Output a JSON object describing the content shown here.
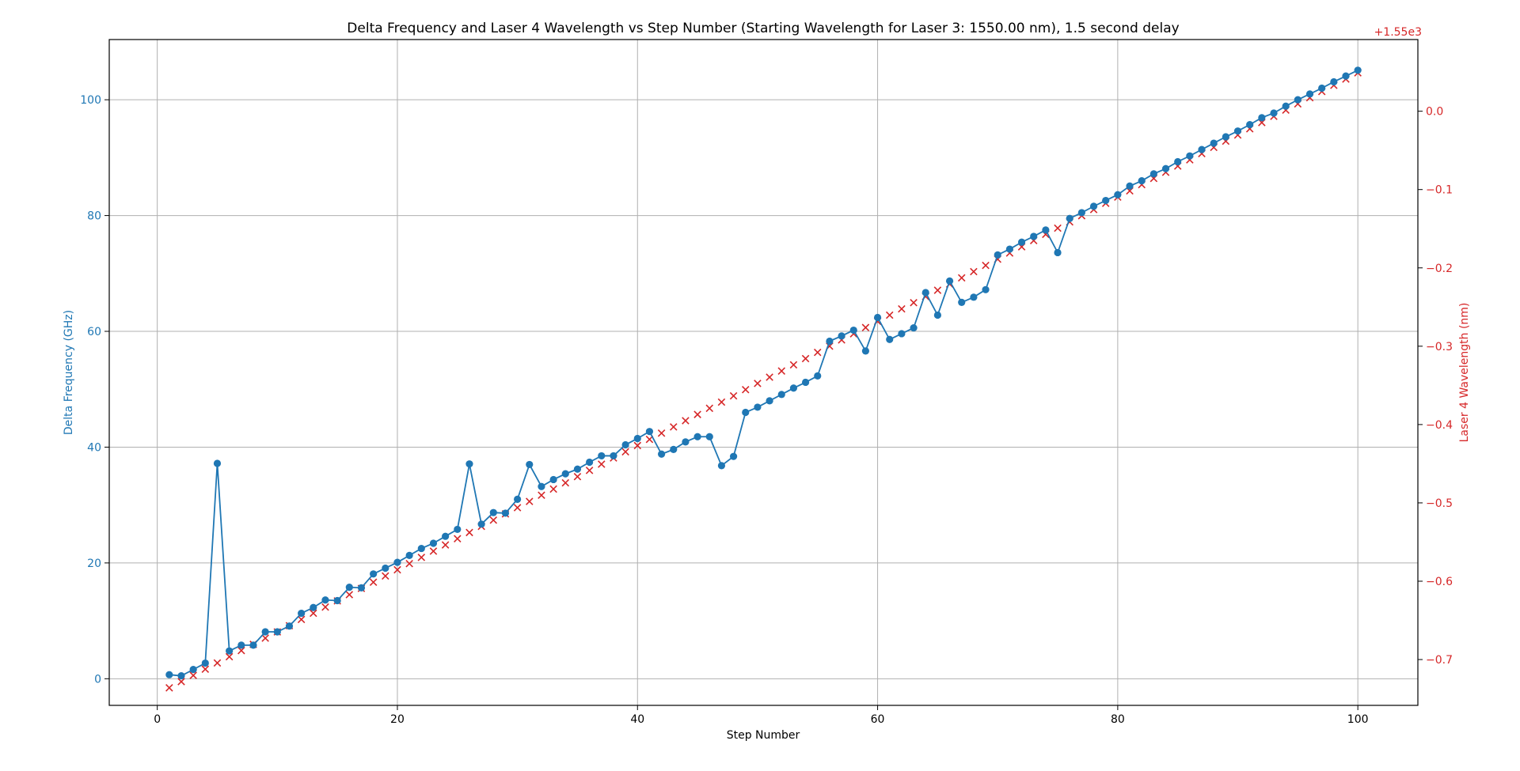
{
  "chart_data": {
    "type": "line",
    "title": "Delta Frequency and Laser 4 Wavelength vs Step Number (Starting Wavelength for Laser 3: 1550.00 nm), 1.5 second delay",
    "xlabel": "Step Number",
    "ylabel_left": "Delta Frequency (GHz)",
    "ylabel_right": "Laser 4 Wavelength (nm)",
    "right_offset_label": "+1.55e3",
    "xlim": [
      -4,
      105
    ],
    "ylim_left": [
      -4.6,
      110.4
    ],
    "ylim_right": [
      -0.7585,
      0.0915
    ],
    "x_ticks": [
      0,
      20,
      40,
      60,
      80,
      100
    ],
    "y_left_ticks": [
      0,
      20,
      40,
      60,
      80,
      100
    ],
    "y_right_ticks": [
      0.0,
      -0.1,
      -0.2,
      -0.3,
      -0.4,
      -0.5,
      -0.6,
      -0.7
    ],
    "y_right_tick_labels": [
      "0.0",
      "−0.1",
      "−0.2",
      "−0.3",
      "−0.4",
      "−0.5",
      "−0.6",
      "−0.7"
    ],
    "grid": true,
    "colors": {
      "left_axis": "#1f77b4",
      "right_axis": "#d62728"
    },
    "x": [
      1,
      2,
      3,
      4,
      5,
      6,
      7,
      8,
      9,
      10,
      11,
      12,
      13,
      14,
      15,
      16,
      17,
      18,
      19,
      20,
      21,
      22,
      23,
      24,
      25,
      26,
      27,
      28,
      29,
      30,
      31,
      32,
      33,
      34,
      35,
      36,
      37,
      38,
      39,
      40,
      41,
      42,
      43,
      44,
      45,
      46,
      47,
      48,
      49,
      50,
      51,
      52,
      53,
      54,
      55,
      56,
      57,
      58,
      59,
      60,
      61,
      62,
      63,
      64,
      65,
      66,
      67,
      68,
      69,
      70,
      71,
      72,
      73,
      74,
      75,
      76,
      77,
      78,
      79,
      80,
      81,
      82,
      83,
      84,
      85,
      86,
      87,
      88,
      89,
      90,
      91,
      92,
      93,
      94,
      95,
      96,
      97,
      98,
      99,
      100
    ],
    "series": [
      {
        "axis": "left",
        "marker": "circle",
        "color": "#1f77b4",
        "values": [
          0.7,
          0.5,
          1.6,
          2.7,
          37.2,
          4.8,
          5.8,
          5.8,
          8.1,
          8.1,
          9.1,
          11.3,
          12.3,
          13.6,
          13.5,
          15.8,
          15.7,
          18.1,
          19.1,
          20.1,
          21.3,
          22.5,
          23.4,
          24.6,
          25.8,
          37.1,
          26.7,
          28.7,
          28.6,
          31.0,
          37.0,
          33.2,
          34.4,
          35.4,
          36.2,
          37.4,
          38.5,
          38.5,
          40.4,
          41.5,
          42.7,
          38.8,
          39.6,
          40.9,
          41.8,
          41.8,
          36.8,
          38.4,
          46.0,
          46.9,
          48.0,
          49.1,
          50.2,
          51.2,
          52.3,
          58.3,
          59.2,
          60.2,
          56.6,
          62.4,
          58.6,
          59.6,
          60.6,
          66.7,
          62.8,
          68.7,
          65.0,
          65.9,
          67.2,
          73.2,
          74.2,
          75.4,
          76.4,
          77.5,
          73.6,
          79.5,
          80.5,
          81.6,
          82.6,
          83.6,
          85.1,
          86.0,
          87.2,
          88.1,
          89.3,
          90.3,
          91.4,
          92.5,
          93.6,
          94.6,
          95.7,
          96.9,
          97.7,
          98.9,
          100.0,
          101.0,
          102.0,
          103.1,
          104.1,
          105.1
        ]
      },
      {
        "axis": "right",
        "marker": "x",
        "color": "#d62728",
        "start": -0.7361,
        "step": 0.00793
      }
    ]
  }
}
